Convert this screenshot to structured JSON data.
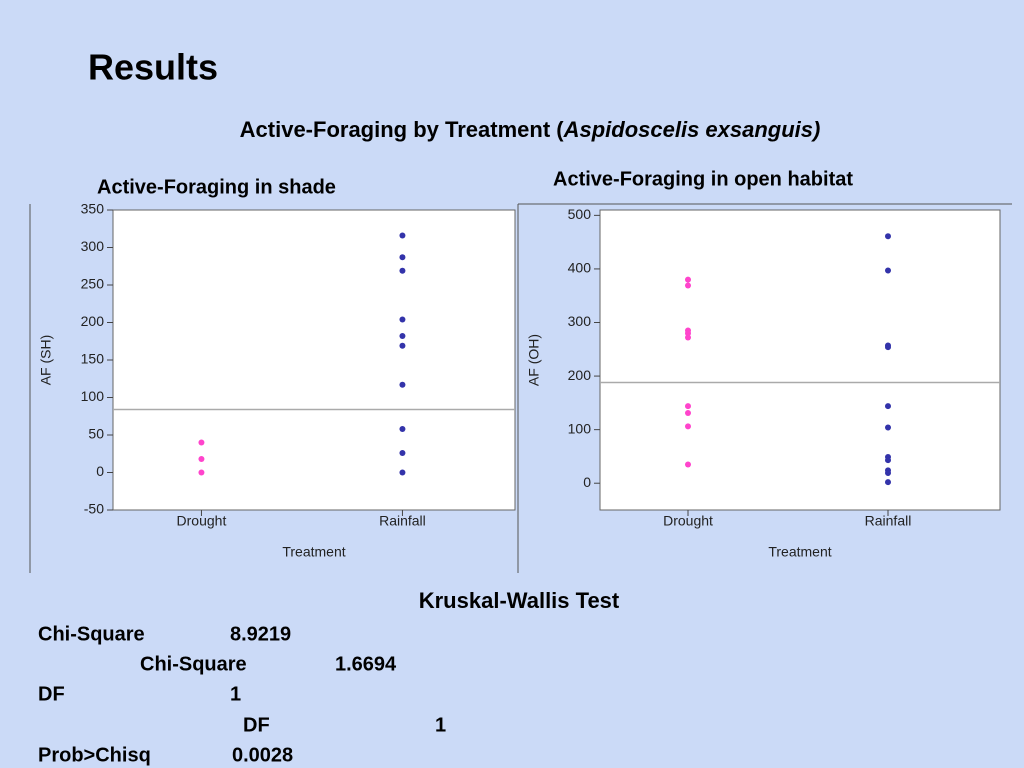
{
  "title": "Results",
  "subtitle": {
    "text": "Active-Foraging by Treatment (",
    "species": "Aspidoscelis exsanguis",
    "close": ")"
  },
  "chart_data": [
    {
      "type": "strip",
      "title": "Active-Foraging in shade",
      "ylabel": "AF (SH)",
      "xlabel": "Treatment",
      "categories": [
        "Drought",
        "Rainfall"
      ],
      "colors": [
        "#ff44cc",
        "#3333aa"
      ],
      "values": [
        [
          40,
          18,
          0
        ],
        [
          316,
          287,
          269,
          204,
          182,
          169,
          117,
          58,
          26,
          0
        ]
      ],
      "hline": 84,
      "ylim": [
        -50,
        350
      ],
      "yticks": [
        -50,
        0,
        50,
        100,
        150,
        200,
        250,
        300,
        350
      ]
    },
    {
      "type": "strip",
      "title": "Active-Foraging in open habitat",
      "ylabel": "AF (OH)",
      "xlabel": "Treatment",
      "categories": [
        "Drought",
        "Rainfall"
      ],
      "colors": [
        "#ff44cc",
        "#3333aa"
      ],
      "values": [
        [
          380,
          369,
          285,
          280,
          272,
          144,
          131,
          106,
          35
        ],
        [
          461,
          397,
          257,
          254,
          144,
          104,
          49,
          43,
          24,
          19,
          2
        ]
      ],
      "hline": 188,
      "ylim": [
        -50,
        510
      ],
      "yticks": [
        0,
        100,
        200,
        300,
        400,
        500
      ]
    }
  ],
  "stats": {
    "title": "Kruskal-Wallis Test",
    "rows": [
      {
        "label": "Chi-Square",
        "value": 8.9219
      },
      {
        "label": "Chi-Square",
        "value": 1.6694
      },
      {
        "label": "DF",
        "value": 1
      },
      {
        "label": "DF",
        "value": 1
      },
      {
        "label": "Prob>Chisq",
        "value": 0.0028
      }
    ]
  }
}
